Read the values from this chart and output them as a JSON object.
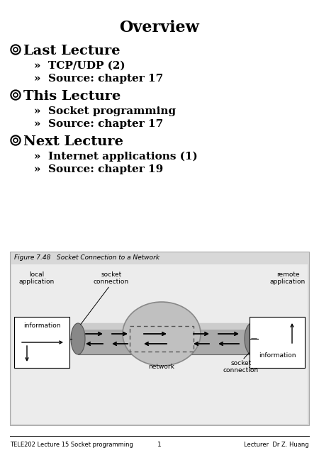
{
  "title": "Overview",
  "background_color": "#ffffff",
  "sections": [
    {
      "header": "Last Lecture",
      "bullets": [
        "»  TCP/UDP (2)",
        "»  Source: chapter 17"
      ]
    },
    {
      "header": "This Lecture",
      "bullets": [
        "»  Socket programming",
        "»  Source: chapter 17"
      ]
    },
    {
      "header": "Next Lecture",
      "bullets": [
        "»  Internet applications (1)",
        "»  Source: chapter 19"
      ]
    }
  ],
  "figure_caption": "Figure 7.48   Socket Connection to a Network",
  "figure_labels": {
    "local_app": "local\napplication",
    "socket_conn_left": "socket\nconnection",
    "remote_app": "remote\napplication",
    "socket_conn_right": "socket\nconnection",
    "network": "network",
    "info_left": "information",
    "info_right": "information"
  },
  "footer_left": "TELE202 Lecture 15 Socket programming",
  "footer_center": "1",
  "footer_right": "Lecturer  Dr Z. Huang",
  "text_color": "#000000",
  "figure_bg": "#d8d8d8",
  "figure_inner_bg": "#ececec",
  "tube_color": "#aaaaaa",
  "tube_dark": "#888888",
  "tube_light": "#cccccc",
  "cloud_color": "#bbbbbb"
}
